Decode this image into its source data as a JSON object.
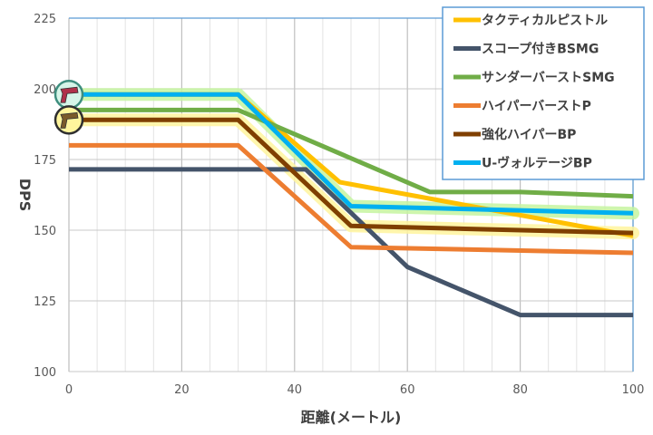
{
  "chart_data": {
    "type": "line",
    "title": "",
    "xlabel": "距離(メートル)",
    "ylabel": "DPS",
    "xlim": [
      0,
      100
    ],
    "ylim": [
      100,
      225
    ],
    "xticks": [
      0,
      20,
      40,
      60,
      80,
      100
    ],
    "yticks": [
      100,
      125,
      150,
      175,
      200,
      225
    ],
    "grid": true,
    "legend_position": "top-right",
    "series": [
      {
        "name": "タクティカルピストル",
        "color": "#FFC000",
        "highlight": "",
        "points": [
          [
            0,
            198
          ],
          [
            30,
            198
          ],
          [
            48,
            167
          ],
          [
            100,
            148
          ]
        ]
      },
      {
        "name": "スコープ付きBSMG",
        "color": "#44546A",
        "highlight": "",
        "points": [
          [
            0,
            171.5
          ],
          [
            42,
            171.5
          ],
          [
            60,
            137
          ],
          [
            80,
            120
          ],
          [
            100,
            120
          ]
        ]
      },
      {
        "name": "サンダーバーストSMG",
        "color": "#70AD47",
        "highlight": "",
        "points": [
          [
            0,
            192.5
          ],
          [
            30,
            192.5
          ],
          [
            64,
            163.5
          ],
          [
            80,
            163.5
          ],
          [
            100,
            162
          ]
        ]
      },
      {
        "name": "ハイパーバーストP",
        "color": "#ED7D31",
        "highlight": "",
        "points": [
          [
            0,
            180
          ],
          [
            30,
            180
          ],
          [
            50,
            144
          ],
          [
            100,
            142
          ]
        ]
      },
      {
        "name": "強化ハイパーBP",
        "color": "#7F3F00",
        "highlight": "#FFF59D",
        "points": [
          [
            0,
            189
          ],
          [
            30,
            189
          ],
          [
            50,
            151.5
          ],
          [
            100,
            149
          ]
        ]
      },
      {
        "name": "U-ヴォルテージBP",
        "color": "#00B0F0",
        "highlight": "#C6F5A0",
        "points": [
          [
            0,
            198
          ],
          [
            30,
            198
          ],
          [
            50,
            158.5
          ],
          [
            100,
            156
          ]
        ]
      }
    ]
  },
  "icons": [
    {
      "name": "pistol-red-icon",
      "y": 198,
      "ring": "#3E8E7E",
      "fill": "#D6F5E8",
      "gun": "#B0324A"
    },
    {
      "name": "pistol-gold-icon",
      "y": 189,
      "ring": "#2F2F2F",
      "fill": "#FFF59D",
      "gun": "#7A5A2A"
    }
  ]
}
